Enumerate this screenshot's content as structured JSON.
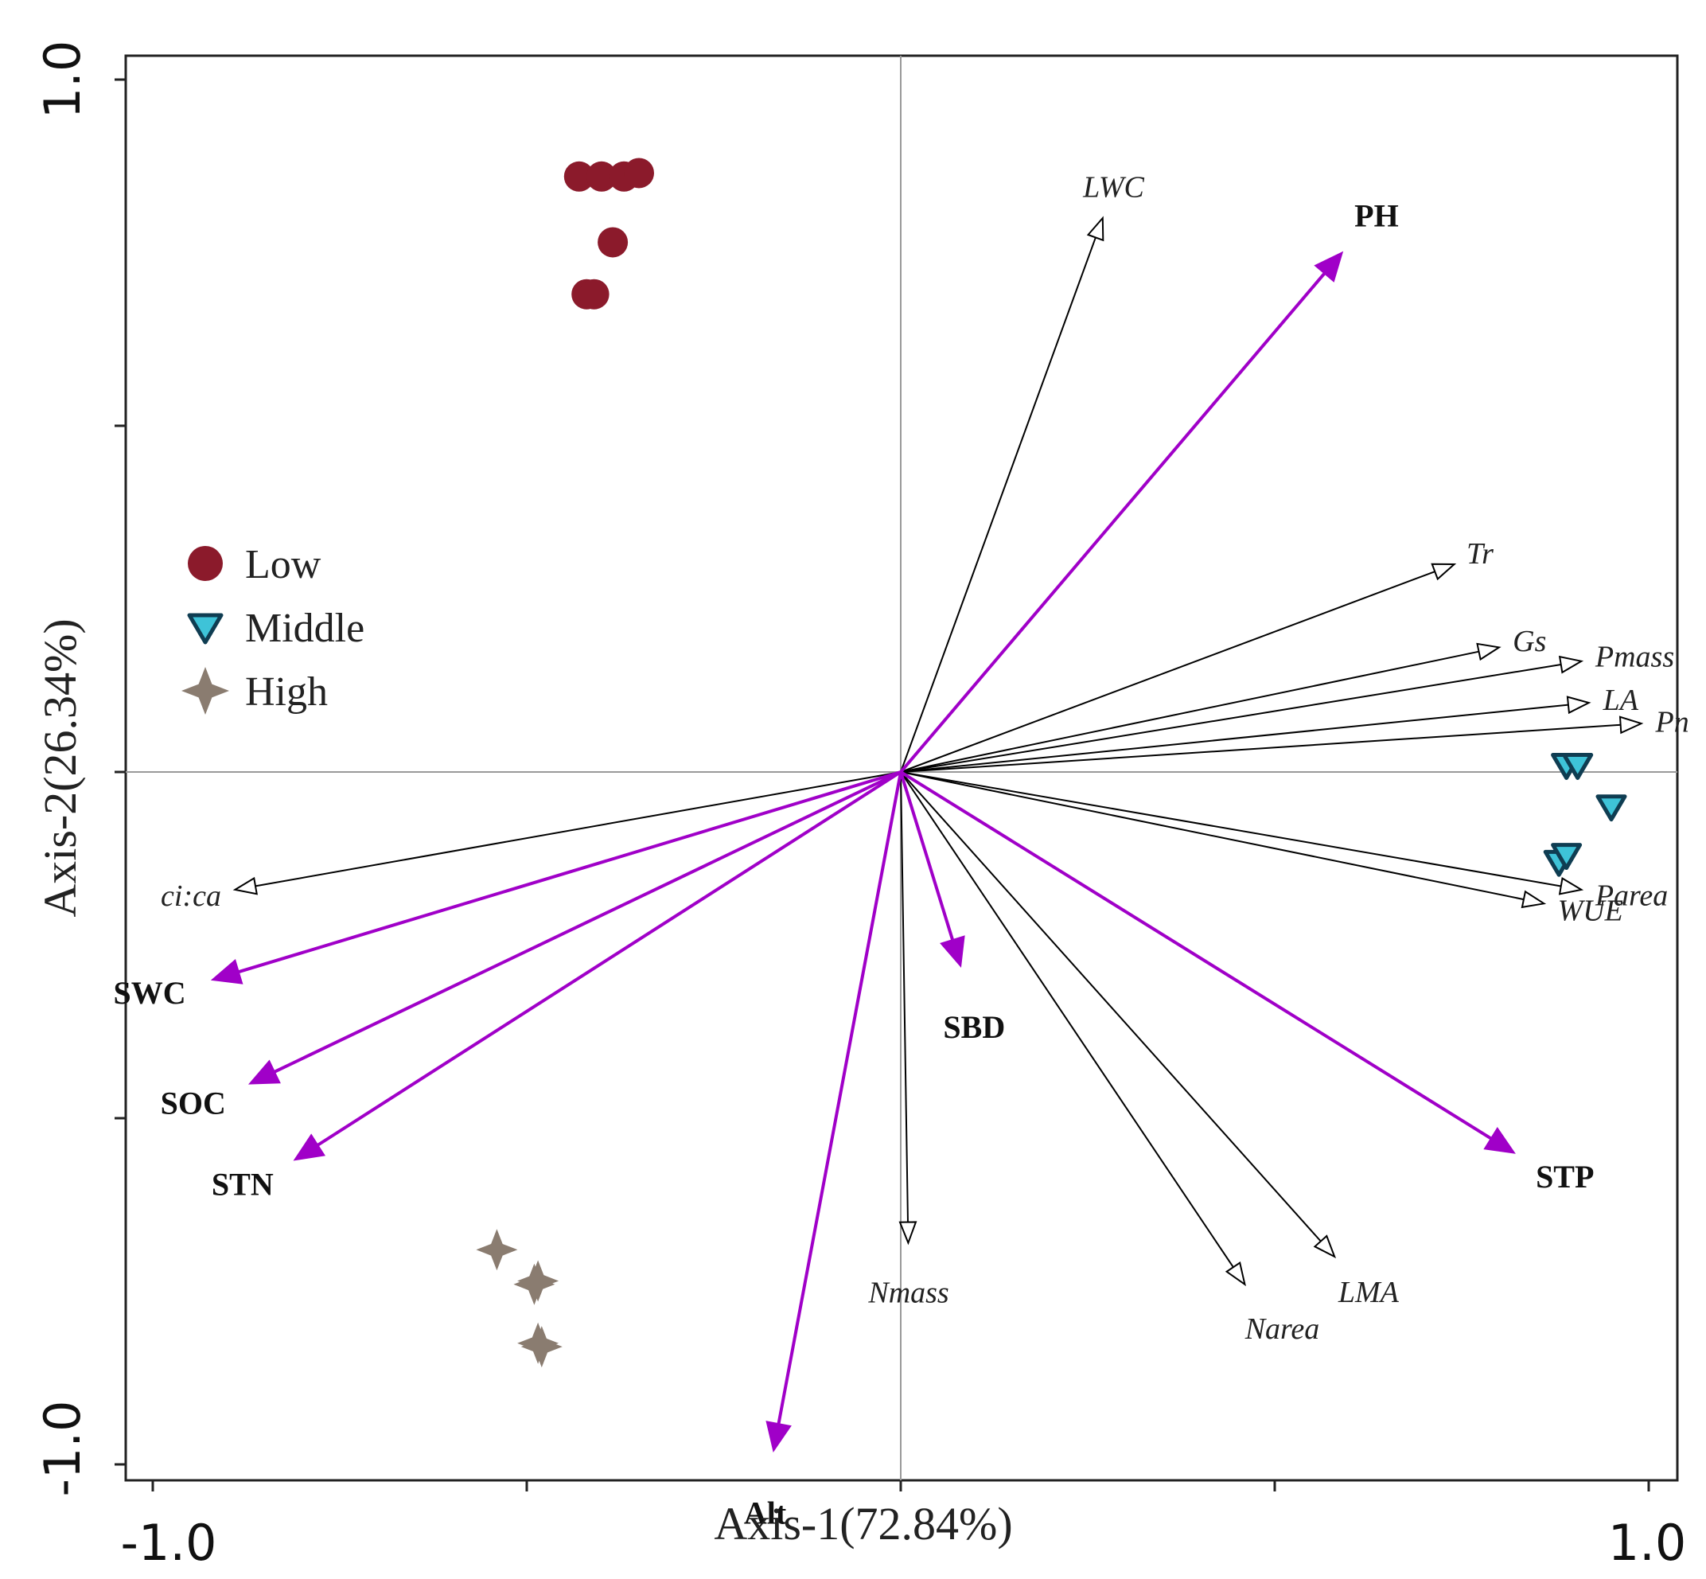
{
  "chart_data": {
    "type": "scatter",
    "subtype": "RDA biplot",
    "title": "",
    "xlabel": "Axis-1(72.84%)",
    "ylabel": "Axis-2(26.34%)",
    "xlim": [
      -1.0,
      1.0
    ],
    "ylim": [
      -1.0,
      1.0
    ],
    "x_tick_labels": [
      "-1.0",
      "1.0"
    ],
    "y_tick_labels": [
      "-1.0",
      "1.0"
    ],
    "grid": false,
    "reference_lines": "x = 0 and y = 0",
    "legend": {
      "placement": "middle-left",
      "entries": [
        {
          "label": "Low",
          "marker": "circle",
          "color": "#8b1a2b"
        },
        {
          "label": "Middle",
          "marker": "triangle-down",
          "color": "#0f3d52"
        },
        {
          "label": "High",
          "marker": "star4",
          "color": "#8a7c70"
        }
      ]
    },
    "series": [
      {
        "name": "Low",
        "marker": "circle",
        "color": "#8b1a2b",
        "points": [
          [
            -0.43,
            0.86
          ],
          [
            -0.4,
            0.86
          ],
          [
            -0.37,
            0.86
          ],
          [
            -0.35,
            0.865
          ],
          [
            -0.385,
            0.765
          ],
          [
            -0.42,
            0.69
          ],
          [
            -0.41,
            0.69
          ]
        ]
      },
      {
        "name": "Middle",
        "marker": "triangle-down",
        "color": "#0f3d52",
        "fill": "#3ec3d8",
        "points": [
          [
            0.89,
            0.01
          ],
          [
            0.905,
            0.01
          ],
          [
            0.95,
            -0.05
          ],
          [
            0.88,
            -0.13
          ],
          [
            0.89,
            -0.12
          ]
        ]
      },
      {
        "name": "High",
        "marker": "star4",
        "color": "#8a7c70",
        "points": [
          [
            -0.54,
            -0.69
          ],
          [
            -0.49,
            -0.74
          ],
          [
            -0.485,
            -0.735
          ],
          [
            -0.48,
            -0.83
          ],
          [
            -0.485,
            -0.825
          ]
        ]
      }
    ],
    "vectors": {
      "traits": {
        "color": "#000000",
        "head": "open-triangle",
        "label_style": "italic",
        "items": [
          {
            "label": "LWC",
            "x": 0.27,
            "y": 0.8
          },
          {
            "label": "Tr",
            "x": 0.74,
            "y": 0.3
          },
          {
            "label": "Gs",
            "x": 0.8,
            "y": 0.18
          },
          {
            "label": "Pmass",
            "x": 0.91,
            "y": 0.16
          },
          {
            "label": "LA",
            "x": 0.92,
            "y": 0.1
          },
          {
            "label": "Pn",
            "x": 0.99,
            "y": 0.07
          },
          {
            "label": "Parea",
            "x": 0.91,
            "y": -0.17
          },
          {
            "label": "WUE",
            "x": 0.86,
            "y": -0.19
          },
          {
            "label": "LMA",
            "x": 0.58,
            "y": -0.7
          },
          {
            "label": "Narea",
            "x": 0.46,
            "y": -0.74
          },
          {
            "label": "Nmass",
            "x": 0.01,
            "y": -0.68
          },
          {
            "label": "ci:ca",
            "x": -0.89,
            "y": -0.17
          }
        ]
      },
      "environment": {
        "color": "#a000c8",
        "head": "filled-triangle",
        "label_style": "bold",
        "items": [
          {
            "label": "PH",
            "x": 0.59,
            "y": 0.75
          },
          {
            "label": "SBD",
            "x": 0.08,
            "y": -0.28
          },
          {
            "label": "STP",
            "x": 0.82,
            "y": -0.55
          },
          {
            "label": "SWC",
            "x": -0.92,
            "y": -0.3
          },
          {
            "label": "SOC",
            "x": -0.87,
            "y": -0.45
          },
          {
            "label": "STN",
            "x": -0.81,
            "y": -0.56
          },
          {
            "label": "Alt",
            "x": -0.17,
            "y": -0.98
          }
        ]
      }
    }
  }
}
